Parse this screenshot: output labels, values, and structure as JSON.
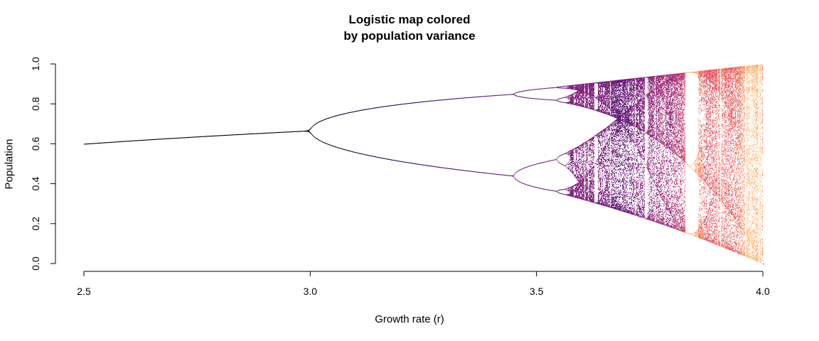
{
  "chart_data": {
    "type": "scatter",
    "title_line1": "Logistic map colored",
    "title_line2": "by population variance",
    "xlabel": "Growth rate (r)",
    "ylabel": "Population",
    "xlim": [
      2.5,
      4.0
    ],
    "ylim": [
      0.0,
      1.0
    ],
    "x_ticks": [
      2.5,
      3.0,
      3.5,
      4.0
    ],
    "x_tick_labels": [
      "2.5",
      "3.0",
      "3.5",
      "4.0"
    ],
    "y_ticks": [
      0.0,
      0.2,
      0.4,
      0.6,
      0.8,
      1.0
    ],
    "y_tick_labels": [
      "0.0",
      "0.2",
      "0.4",
      "0.6",
      "0.8",
      "1.0"
    ],
    "grid": false,
    "legend": "none",
    "map": "x_next = r * x * (1 - x)",
    "r_range": [
      2.5,
      4.0
    ],
    "color_by": "variance of population values at each r",
    "palette": [
      "#000004",
      "#3b0f70",
      "#8c2981",
      "#de4968",
      "#fe9f6d",
      "#fcfdbf"
    ],
    "color_scale_max_variance": 0.13
  }
}
